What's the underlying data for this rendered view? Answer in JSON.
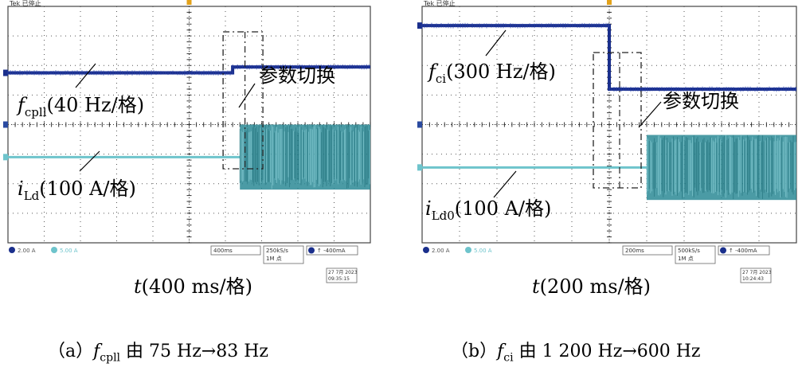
{
  "panels": [
    {
      "id": "a",
      "scope_header": "Tek 已停止",
      "ch1_readout": "2.00 A",
      "ch2_readout": "5.00 A",
      "timebase_readout": "400ms",
      "sample_readout": "250kS/s",
      "points_readout": "1M 点",
      "trigger_readout": "↑ -400mA",
      "date": "27 7月 2023",
      "time": "09:35:15",
      "time_axis_label_var": "t",
      "time_axis_label_rest": "(400 ms/格)",
      "annotation_switch": "参数切换",
      "freq_label_var": "f",
      "freq_label_sub": "cpll",
      "freq_label_rest": "(40 Hz/格)",
      "current_label_var": "i",
      "current_label_sub": "Ld",
      "current_label_rest": "(100 A/格)",
      "caption_prefix": "（a）",
      "caption_var": "f",
      "caption_sub": "cpll",
      "caption_rest": " 由 75 Hz→83 Hz"
    },
    {
      "id": "b",
      "scope_header": "Tek 已停止",
      "ch1_readout": "2.00 A",
      "ch2_readout": "5.00 A",
      "timebase_readout": "200ms",
      "sample_readout": "500kS/s",
      "points_readout": "1M 点",
      "trigger_readout": "↑ -400mA",
      "date": "27 7月 2023",
      "time": "10:24:43",
      "time_axis_label_var": "t",
      "time_axis_label_rest": "(200 ms/格)",
      "annotation_switch": "参数切换",
      "freq_label_var": "f",
      "freq_label_sub": "ci",
      "freq_label_rest": "(300 Hz/格)",
      "current_label_var": "i",
      "current_label_sub": "Ld0",
      "current_label_rest": "(100 A/格)",
      "caption_prefix": "（b）",
      "caption_var": "f",
      "caption_sub": "ci",
      "caption_rest": " 由 1 200 Hz→600 Hz"
    }
  ],
  "chart_data": [
    {
      "type": "line",
      "xlabel": "t(400 ms/格)",
      "series": [
        {
          "name": "fcpll(40 Hz/格)",
          "color": "#1a2f8c",
          "x_div": [
            0,
            6.2,
            6.2,
            10
          ],
          "y_div": [
            5.75,
            5.75,
            5.95,
            5.95
          ]
        },
        {
          "name": "iLd(100 A/格)",
          "color": "#6ec4cc",
          "envelope_color": "#2b8a95",
          "x_div": [
            0,
            6.4,
            6.4,
            10
          ],
          "y_center_div": 2.9,
          "y_amp_div": [
            0.02,
            0.02,
            1.1,
            1.1
          ]
        }
      ],
      "switch_time_div": 6.2,
      "divisions": {
        "x": 10,
        "y": 8
      }
    },
    {
      "type": "line",
      "xlabel": "t(200 ms/格)",
      "series": [
        {
          "name": "fci(300 Hz/格)",
          "color": "#1a2f8c",
          "x_div": [
            0,
            5.0,
            5.0,
            10
          ],
          "y_div": [
            7.35,
            7.35,
            5.2,
            5.2
          ]
        },
        {
          "name": "iLd0(100 A/格)",
          "color": "#6ec4cc",
          "envelope_color": "#2b8a95",
          "x_div": [
            0,
            6.0,
            6.0,
            10
          ],
          "y_center_div": 2.55,
          "y_amp_div": [
            0.02,
            0.02,
            1.1,
            1.1
          ]
        }
      ],
      "switch_time_div": 5.0,
      "divisions": {
        "x": 10,
        "y": 8
      }
    }
  ]
}
